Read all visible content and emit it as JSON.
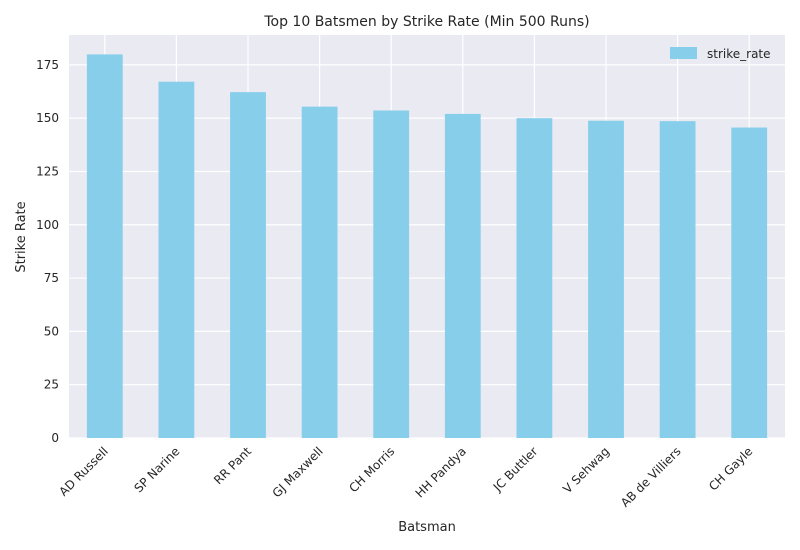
{
  "chart_data": {
    "type": "bar",
    "title": "Top 10 Batsmen by Strike Rate (Min 500 Runs)",
    "xlabel": "Batsman",
    "ylabel": "Strike Rate",
    "categories": [
      "AD Russell",
      "SP Narine",
      "RR Pant",
      "GJ Maxwell",
      "CH Morris",
      "HH Pandya",
      "JC Buttler",
      "V Sehwag",
      "AB de Villiers",
      "CH Gayle"
    ],
    "series": [
      {
        "name": "strike_rate",
        "values": [
          179.9,
          167.1,
          162.2,
          155.4,
          153.6,
          152.0,
          150.0,
          148.8,
          148.6,
          145.6
        ],
        "color": "#87ceeb"
      }
    ],
    "yticks": [
      0,
      25,
      50,
      75,
      100,
      125,
      150,
      175
    ],
    "ylim": [
      0,
      189
    ],
    "grid": true,
    "legend_position": "top-right",
    "background": "#eaeaf2"
  }
}
